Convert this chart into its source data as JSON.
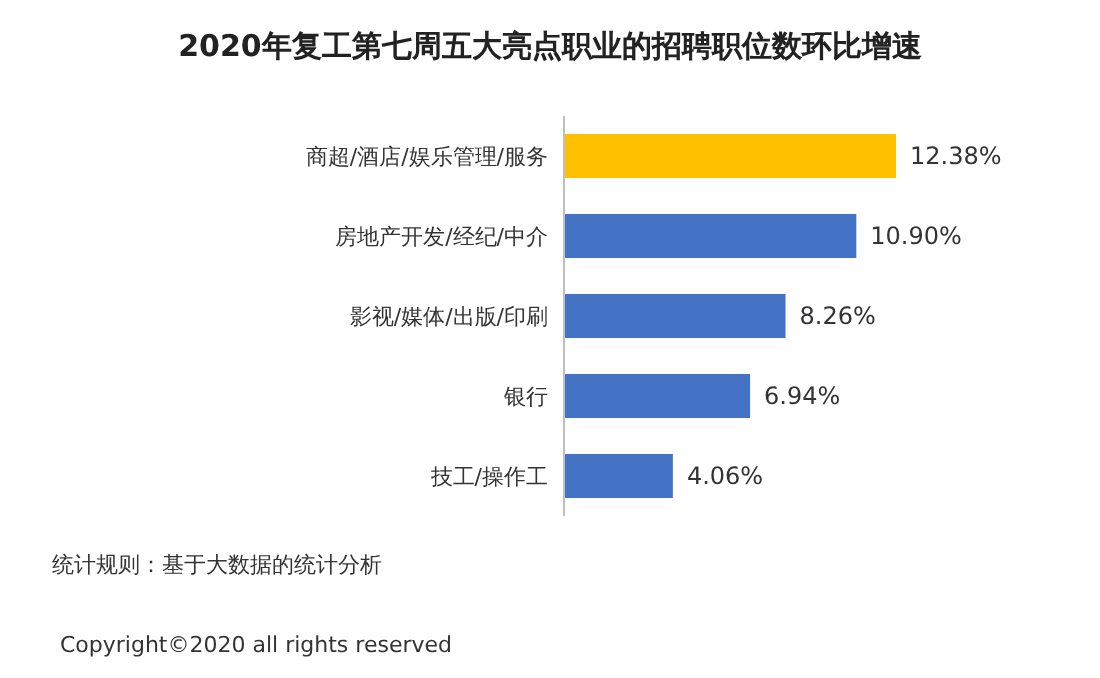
{
  "chart_data": {
    "type": "bar",
    "orientation": "horizontal",
    "title": "2020年复工第七周五大亮点职业的招聘职位数环比增速",
    "categories": [
      "商超/酒店/娱乐管理/服务",
      "房地产开发/经纪/中介",
      "影视/媒体/出版/印刷",
      "银行",
      "技工/操作工"
    ],
    "values": [
      12.38,
      10.9,
      8.26,
      6.94,
      4.06
    ],
    "value_labels": [
      "12.38%",
      "10.90%",
      "8.26%",
      "6.94%",
      "4.06%"
    ],
    "colors": [
      "#ffc000",
      "#4472c4",
      "#4472c4",
      "#4472c4",
      "#4472c4"
    ],
    "annotations": [
      "统计规则：基于大数据的统计分析",
      "Copyright©2020 all rights reserved"
    ]
  }
}
